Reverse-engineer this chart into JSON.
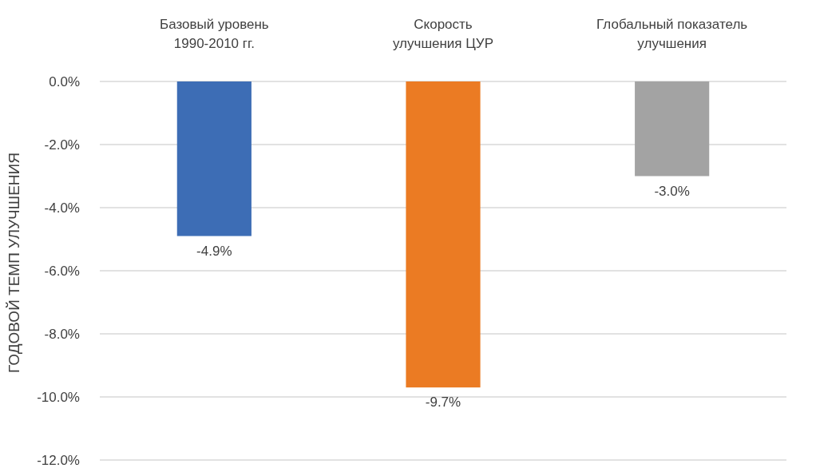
{
  "chart_data": {
    "type": "bar",
    "ylabel": "ГОДОВОЙ ТЕМП УЛУЧШЕНИЯ",
    "categories": [
      "Базовый уровень\n1990-2010 гг.",
      "Скорость\nулучшения ЦУР",
      "Глобальный показатель\nулучшения"
    ],
    "values": [
      -4.9,
      -9.7,
      -3.0
    ],
    "colors": [
      "#3d6db5",
      "#eb7b23",
      "#a3a3a3"
    ],
    "value_labels": [
      "-4.9%",
      "-9.7%",
      "-3.0%"
    ],
    "ylim": [
      -12,
      0
    ],
    "yticks": [
      {
        "value": 0,
        "label": "0.0%"
      },
      {
        "value": -2,
        "label": "-2.0%"
      },
      {
        "value": -4,
        "label": "-4.0%"
      },
      {
        "value": -6,
        "label": "-6.0%"
      },
      {
        "value": -8,
        "label": "-8.0%"
      },
      {
        "value": -10,
        "label": "-10.0%"
      },
      {
        "value": -12,
        "label": "-12.0%"
      }
    ],
    "grid": "y"
  }
}
